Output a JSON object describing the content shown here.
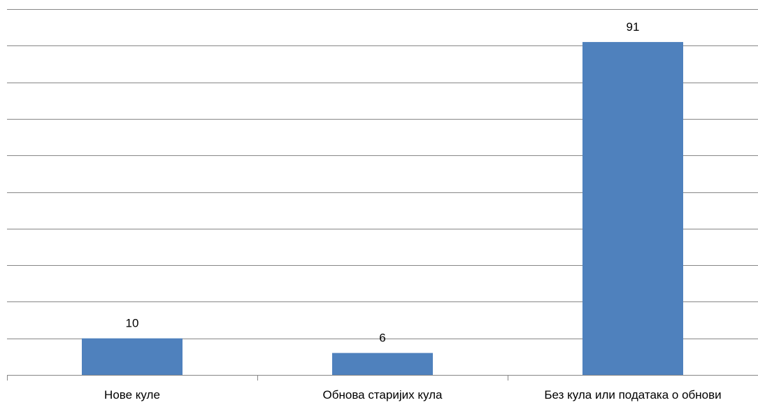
{
  "chart_data": {
    "type": "bar",
    "categories": [
      "Нове куле",
      "Обнова старијих кула",
      "Без кула или података о обнови"
    ],
    "values": [
      10,
      6,
      91
    ],
    "data_labels": [
      "10",
      "6",
      "91"
    ],
    "title": "",
    "xlabel": "",
    "ylabel": "",
    "ylim": [
      0,
      100
    ],
    "gridline_step": 10,
    "grid": true,
    "legend": "none",
    "bar_color": "#4F81BD",
    "grid_color": "#878787"
  }
}
